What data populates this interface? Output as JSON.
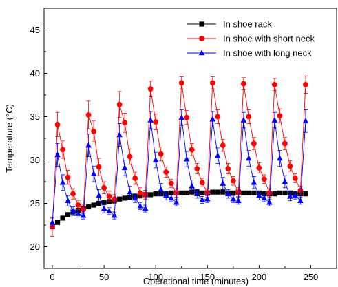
{
  "chart_data": {
    "type": "line",
    "title": "",
    "xlabel": "Operational time (minutes)",
    "ylabel": "Temperature (°C)",
    "xlim": [
      -8,
      275
    ],
    "ylim": [
      17.5,
      47.5
    ],
    "xticks": [
      0,
      50,
      100,
      150,
      200,
      250
    ],
    "yticks": [
      20,
      25,
      30,
      35,
      40,
      45
    ],
    "grid": false,
    "legend_position": "top-right",
    "series": [
      {
        "name": "In shoe rack",
        "color": "#000000",
        "marker": "square",
        "x": [
          0,
          5,
          10,
          15,
          20,
          25,
          30,
          35,
          40,
          45,
          50,
          55,
          60,
          65,
          70,
          75,
          80,
          85,
          90,
          95,
          100,
          105,
          110,
          115,
          120,
          125,
          130,
          135,
          140,
          145,
          150,
          155,
          160,
          165,
          170,
          175,
          180,
          185,
          190,
          195,
          200,
          205,
          210,
          215,
          220,
          225,
          230,
          235,
          240,
          245
        ],
        "y": [
          22.3,
          22.8,
          23.3,
          23.7,
          24.0,
          24.2,
          24.4,
          24.6,
          24.8,
          25.0,
          25.1,
          25.2,
          25.3,
          25.5,
          25.6,
          25.7,
          25.8,
          25.9,
          26.0,
          26.0,
          26.1,
          26.1,
          26.1,
          26.2,
          26.2,
          26.2,
          26.2,
          26.3,
          26.3,
          26.2,
          26.2,
          26.3,
          26.3,
          26.3,
          26.2,
          26.2,
          26.3,
          26.2,
          26.2,
          26.2,
          26.2,
          26.1,
          26.1,
          26.1,
          26.2,
          26.2,
          26.2,
          26.1,
          26.1,
          26.1
        ],
        "err": [
          0.2,
          0.2,
          0.2,
          0.2,
          0.2,
          0.2,
          0.2,
          0.2,
          0.2,
          0.2,
          0.2,
          0.2,
          0.2,
          0.2,
          0.2,
          0.2,
          0.2,
          0.2,
          0.2,
          0.2,
          0.2,
          0.2,
          0.2,
          0.2,
          0.2,
          0.2,
          0.2,
          0.2,
          0.2,
          0.2,
          0.2,
          0.2,
          0.2,
          0.2,
          0.2,
          0.2,
          0.2,
          0.2,
          0.2,
          0.2,
          0.2,
          0.2,
          0.2,
          0.2,
          0.2,
          0.2,
          0.2,
          0.2,
          0.2,
          0.2
        ]
      },
      {
        "name": "In shoe with short neck",
        "color": "#ff0000",
        "marker": "circle",
        "x": [
          0,
          5,
          10,
          15,
          20,
          25,
          30,
          35,
          40,
          45,
          50,
          55,
          60,
          65,
          70,
          75,
          80,
          85,
          90,
          95,
          100,
          105,
          110,
          115,
          120,
          125,
          130,
          135,
          140,
          145,
          150,
          155,
          160,
          165,
          170,
          175,
          180,
          185,
          190,
          195,
          200,
          205,
          210,
          215,
          220,
          225,
          230,
          235,
          240,
          245
        ],
        "y": [
          22.3,
          34.1,
          31.2,
          28.0,
          26.1,
          24.8,
          24.3,
          35.2,
          33.3,
          29.2,
          26.8,
          25.8,
          25.5,
          36.4,
          34.3,
          30.4,
          27.9,
          26.2,
          26.0,
          38.2,
          34.4,
          30.7,
          28.6,
          27.3,
          26.2,
          38.9,
          34.9,
          31.2,
          29.0,
          27.4,
          26.2,
          38.9,
          35.0,
          31.7,
          29.0,
          27.6,
          26.3,
          38.8,
          35.0,
          31.9,
          29.1,
          27.8,
          26.2,
          38.7,
          35.1,
          31.9,
          29.3,
          27.9,
          26.5,
          38.7
        ],
        "err": [
          1.1,
          1.4,
          1.0,
          0.8,
          0.6,
          0.5,
          0.5,
          1.6,
          1.2,
          1.0,
          0.7,
          0.6,
          0.5,
          1.5,
          1.1,
          0.9,
          0.7,
          0.6,
          0.5,
          0.9,
          0.9,
          0.8,
          0.6,
          0.5,
          0.5,
          0.7,
          0.8,
          0.7,
          0.6,
          0.5,
          0.5,
          0.7,
          0.8,
          0.7,
          0.6,
          0.5,
          0.5,
          0.7,
          0.8,
          0.7,
          0.6,
          0.5,
          0.5,
          0.7,
          0.8,
          0.7,
          0.6,
          0.5,
          0.5,
          1.0
        ]
      },
      {
        "name": "In shoe with long neck",
        "color": "#0000ff",
        "marker": "triangle",
        "x": [
          0,
          5,
          10,
          15,
          20,
          25,
          30,
          35,
          40,
          45,
          50,
          55,
          60,
          65,
          70,
          75,
          80,
          85,
          90,
          95,
          100,
          105,
          110,
          115,
          120,
          125,
          130,
          135,
          140,
          145,
          150,
          155,
          160,
          165,
          170,
          175,
          180,
          185,
          190,
          195,
          200,
          205,
          210,
          215,
          220,
          225,
          230,
          235,
          240,
          245
        ],
        "y": [
          22.8,
          30.6,
          27.4,
          25.3,
          24.1,
          23.8,
          23.6,
          31.7,
          28.4,
          25.9,
          24.4,
          24.1,
          23.6,
          32.9,
          29.1,
          26.3,
          25.6,
          24.7,
          24.4,
          34.6,
          30.0,
          26.6,
          25.9,
          25.6,
          25.1,
          34.9,
          30.1,
          27.0,
          26.1,
          25.4,
          25.5,
          34.7,
          30.5,
          27.3,
          26.1,
          25.5,
          25.3,
          34.6,
          30.2,
          27.4,
          25.9,
          25.6,
          25.1,
          34.6,
          30.2,
          27.5,
          25.8,
          25.9,
          25.3,
          34.5
        ],
        "err": [
          0.5,
          1.3,
          0.9,
          0.6,
          0.5,
          0.4,
          0.4,
          1.3,
          0.9,
          0.7,
          0.5,
          0.4,
          0.4,
          1.3,
          0.9,
          0.7,
          0.5,
          0.4,
          0.4,
          1.0,
          0.9,
          0.7,
          0.5,
          0.4,
          0.4,
          0.9,
          0.9,
          0.7,
          0.5,
          0.4,
          0.4,
          0.9,
          0.9,
          0.7,
          0.5,
          0.4,
          0.4,
          0.9,
          0.9,
          0.7,
          0.5,
          0.4,
          0.4,
          0.9,
          0.9,
          0.7,
          0.5,
          0.4,
          0.4,
          1.3
        ]
      }
    ]
  }
}
